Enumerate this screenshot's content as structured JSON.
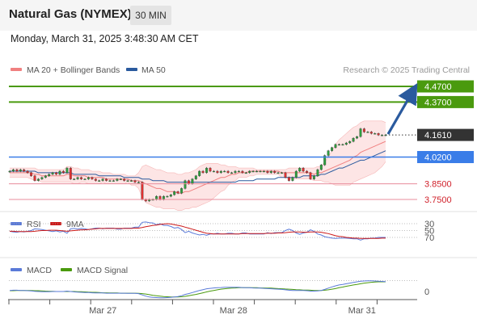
{
  "header": {
    "title": "Natural Gas (NYMEX)",
    "timeframe": "30 MIN",
    "datetime": "Monday, March 31, 2025 3:48:30 AM CET"
  },
  "colors": {
    "bollinger": "#f08080",
    "bollinger_fill": "#fde0e0",
    "ma50": "#2a5a9e",
    "resistance": "#4a9a0e",
    "pivot": "#3a7de8",
    "support": "#e88c9c",
    "price_label": "#333333",
    "arrow": "#2a5a9e",
    "rsi": "#5a7ad8",
    "rsi_ma": "#cc1a1a",
    "macd": "#5a7ad8",
    "macd_signal": "#4a9a0e"
  },
  "chart_data": [
    {
      "type": "line",
      "panel": "price",
      "legend": [
        {
          "name": "MA 20 + Bollinger Bands",
          "color": "#f08080"
        },
        {
          "name": "MA 50",
          "color": "#2a5a9e"
        }
      ],
      "watermark": "Research © 2025 Trading Central",
      "x_ticks": [
        {
          "label": "Mar 27",
          "pos": 0.23
        },
        {
          "label": "Mar 28",
          "pos": 0.55
        },
        {
          "label": "Mar 31",
          "pos": 0.865
        }
      ],
      "ylim": [
        3.7,
        4.5
      ],
      "levels": [
        {
          "label": "4.4700",
          "value": 4.47,
          "kind": "resistance"
        },
        {
          "label": "4.3700",
          "value": 4.37,
          "kind": "resistance"
        },
        {
          "label": "4.0200",
          "value": 4.02,
          "kind": "pivot"
        },
        {
          "label": "3.8500",
          "value": 3.85,
          "kind": "support"
        },
        {
          "label": "3.7500",
          "value": 3.75,
          "kind": "support"
        }
      ],
      "last_price": {
        "label": "4.1610",
        "value": 4.161
      },
      "close": [
        3.93,
        3.94,
        3.93,
        3.94,
        3.93,
        3.92,
        3.9,
        3.87,
        3.88,
        3.89,
        3.9,
        3.91,
        3.92,
        3.91,
        3.93,
        3.92,
        3.95,
        3.88,
        3.88,
        3.89,
        3.88,
        3.88,
        3.89,
        3.88,
        3.87,
        3.87,
        3.88,
        3.87,
        3.87,
        3.87,
        3.88,
        3.88,
        3.87,
        3.87,
        3.87,
        3.86,
        3.86,
        3.75,
        3.74,
        3.75,
        3.75,
        3.77,
        3.75,
        3.77,
        3.77,
        3.78,
        3.8,
        3.79,
        3.82,
        3.87,
        3.85,
        3.88,
        3.9,
        3.93,
        3.92,
        3.95,
        3.93,
        3.93,
        3.92,
        3.93,
        3.93,
        3.92,
        3.92,
        3.93,
        3.93,
        3.92,
        3.92,
        3.93,
        3.93,
        3.93,
        3.93,
        3.93,
        3.92,
        3.93,
        3.92,
        3.92,
        3.92,
        3.89,
        3.87,
        3.89,
        3.93,
        3.95,
        3.93,
        3.92,
        3.88,
        3.9,
        3.94,
        3.97,
        4.03,
        4.06,
        4.08,
        4.1,
        4.1,
        4.1,
        4.11,
        4.12,
        4.14,
        4.15,
        4.2,
        4.18,
        4.18,
        4.17,
        4.17,
        4.16,
        4.16,
        4.161
      ],
      "ma20": [
        3.92,
        3.92,
        3.92,
        3.92,
        3.92,
        3.92,
        3.92,
        3.91,
        3.91,
        3.9,
        3.9,
        3.9,
        3.9,
        3.9,
        3.9,
        3.9,
        3.91,
        3.91,
        3.9,
        3.9,
        3.9,
        3.9,
        3.89,
        3.89,
        3.89,
        3.89,
        3.89,
        3.88,
        3.88,
        3.88,
        3.88,
        3.88,
        3.88,
        3.88,
        3.87,
        3.87,
        3.87,
        3.86,
        3.85,
        3.84,
        3.83,
        3.82,
        3.82,
        3.81,
        3.8,
        3.8,
        3.8,
        3.79,
        3.79,
        3.8,
        3.8,
        3.81,
        3.82,
        3.83,
        3.84,
        3.85,
        3.86,
        3.87,
        3.88,
        3.89,
        3.89,
        3.9,
        3.91,
        3.91,
        3.92,
        3.92,
        3.92,
        3.93,
        3.93,
        3.93,
        3.93,
        3.93,
        3.93,
        3.93,
        3.93,
        3.93,
        3.92,
        3.92,
        3.92,
        3.92,
        3.92,
        3.92,
        3.92,
        3.92,
        3.92,
        3.91,
        3.92,
        3.92,
        3.93,
        3.94,
        3.95,
        3.96,
        3.97,
        3.98,
        3.99,
        4.0,
        4.02,
        4.03,
        4.05,
        4.06,
        4.07,
        4.08,
        4.09,
        4.1,
        4.11,
        4.12
      ],
      "bb_upper": [
        3.95,
        3.95,
        3.95,
        3.95,
        3.95,
        3.95,
        3.95,
        3.95,
        3.94,
        3.94,
        3.94,
        3.94,
        3.94,
        3.94,
        3.94,
        3.94,
        3.96,
        3.96,
        3.95,
        3.95,
        3.94,
        3.94,
        3.94,
        3.93,
        3.93,
        3.93,
        3.92,
        3.92,
        3.92,
        3.91,
        3.91,
        3.91,
        3.91,
        3.9,
        3.9,
        3.9,
        3.92,
        3.96,
        3.97,
        3.96,
        3.95,
        3.94,
        3.94,
        3.93,
        3.92,
        3.92,
        3.92,
        3.91,
        3.91,
        3.92,
        3.92,
        3.93,
        3.94,
        3.96,
        3.97,
        3.98,
        3.98,
        3.98,
        3.98,
        3.97,
        3.97,
        3.96,
        3.96,
        3.96,
        3.95,
        3.95,
        3.95,
        3.95,
        3.95,
        3.94,
        3.94,
        3.94,
        3.94,
        3.94,
        3.94,
        3.94,
        3.94,
        3.94,
        3.95,
        3.95,
        3.95,
        3.95,
        3.95,
        3.95,
        3.95,
        3.95,
        3.96,
        3.96,
        3.99,
        4.02,
        4.06,
        4.1,
        4.13,
        4.15,
        4.17,
        4.19,
        4.21,
        4.22,
        4.24,
        4.25,
        4.25,
        4.25,
        4.25,
        4.25,
        4.25,
        4.24
      ],
      "bb_lower": [
        3.89,
        3.89,
        3.89,
        3.89,
        3.89,
        3.89,
        3.88,
        3.87,
        3.87,
        3.86,
        3.86,
        3.86,
        3.86,
        3.86,
        3.86,
        3.86,
        3.86,
        3.86,
        3.85,
        3.85,
        3.86,
        3.86,
        3.85,
        3.85,
        3.85,
        3.85,
        3.86,
        3.85,
        3.85,
        3.85,
        3.85,
        3.85,
        3.85,
        3.86,
        3.84,
        3.84,
        3.82,
        3.76,
        3.73,
        3.72,
        3.71,
        3.7,
        3.7,
        3.69,
        3.69,
        3.69,
        3.69,
        3.68,
        3.68,
        3.69,
        3.69,
        3.7,
        3.7,
        3.71,
        3.72,
        3.73,
        3.74,
        3.76,
        3.78,
        3.8,
        3.81,
        3.84,
        3.86,
        3.87,
        3.89,
        3.89,
        3.89,
        3.9,
        3.9,
        3.91,
        3.91,
        3.91,
        3.91,
        3.91,
        3.91,
        3.91,
        3.89,
        3.89,
        3.88,
        3.88,
        3.88,
        3.88,
        3.88,
        3.88,
        3.88,
        3.87,
        3.87,
        3.87,
        3.86,
        3.86,
        3.85,
        3.84,
        3.84,
        3.84,
        3.84,
        3.84,
        3.86,
        3.87,
        3.88,
        3.89,
        3.9,
        3.91,
        3.92,
        3.94,
        3.96,
        3.99
      ],
      "ma50": [
        3.93,
        3.93,
        3.93,
        3.93,
        3.93,
        3.93,
        3.93,
        3.93,
        3.92,
        3.92,
        3.92,
        3.92,
        3.92,
        3.92,
        3.92,
        3.92,
        3.92,
        3.92,
        3.91,
        3.91,
        3.91,
        3.91,
        3.91,
        3.91,
        3.91,
        3.9,
        3.9,
        3.9,
        3.9,
        3.9,
        3.9,
        3.9,
        3.89,
        3.89,
        3.89,
        3.89,
        3.89,
        3.88,
        3.88,
        3.88,
        3.87,
        3.87,
        3.87,
        3.87,
        3.86,
        3.86,
        3.86,
        3.86,
        3.86,
        3.86,
        3.86,
        3.86,
        3.86,
        3.86,
        3.86,
        3.86,
        3.86,
        3.86,
        3.86,
        3.86,
        3.86,
        3.86,
        3.86,
        3.86,
        3.87,
        3.87,
        3.87,
        3.87,
        3.87,
        3.88,
        3.88,
        3.88,
        3.88,
        3.88,
        3.88,
        3.89,
        3.89,
        3.89,
        3.89,
        3.89,
        3.89,
        3.89,
        3.9,
        3.9,
        3.9,
        3.9,
        3.9,
        3.91,
        3.91,
        3.92,
        3.93,
        3.94,
        3.95,
        3.95,
        3.96,
        3.97,
        3.98,
        3.99,
        4.0,
        4.0,
        4.01,
        4.02,
        4.03,
        4.04,
        4.05,
        4.06
      ]
    },
    {
      "type": "line",
      "panel": "rsi",
      "legend": [
        {
          "name": "RSI",
          "color": "#5a7ad8"
        },
        {
          "name": "9MA",
          "color": "#cc1a1a"
        }
      ],
      "ticks": [
        "70",
        "50",
        "30"
      ],
      "rsi": [
        52,
        54,
        55,
        53,
        54,
        52,
        50,
        45,
        46,
        47,
        49,
        51,
        53,
        51,
        54,
        52,
        58,
        45,
        44,
        46,
        44,
        45,
        47,
        45,
        43,
        43,
        45,
        43,
        43,
        43,
        46,
        46,
        43,
        43,
        43,
        40,
        40,
        26,
        25,
        27,
        28,
        33,
        30,
        35,
        35,
        38,
        43,
        41,
        47,
        56,
        52,
        57,
        60,
        63,
        61,
        64,
        60,
        60,
        58,
        60,
        60,
        58,
        58,
        60,
        60,
        57,
        57,
        60,
        60,
        60,
        60,
        60,
        56,
        59,
        56,
        56,
        56,
        50,
        46,
        50,
        57,
        61,
        57,
        55,
        48,
        52,
        60,
        63,
        68,
        70,
        72,
        73,
        72,
        72,
        72,
        73,
        74,
        74,
        78,
        74,
        74,
        72,
        72,
        70,
        70,
        70
      ],
      "ma9": [
        52,
        52,
        53,
        53,
        53,
        53,
        53,
        52,
        51,
        50,
        50,
        49,
        49,
        49,
        50,
        51,
        52,
        51,
        50,
        49,
        48,
        48,
        47,
        46,
        45,
        44,
        44,
        44,
        44,
        44,
        44,
        44,
        44,
        44,
        44,
        43,
        43,
        41,
        39,
        37,
        35,
        34,
        32,
        31,
        30,
        31,
        33,
        35,
        37,
        40,
        43,
        46,
        49,
        52,
        55,
        58,
        59,
        60,
        60,
        60,
        60,
        60,
        60,
        60,
        60,
        59,
        59,
        59,
        59,
        59,
        59,
        59,
        58,
        58,
        58,
        57,
        57,
        56,
        55,
        54,
        54,
        54,
        55,
        55,
        54,
        54,
        54,
        55,
        57,
        59,
        62,
        65,
        67,
        68,
        70,
        71,
        72,
        72,
        73,
        73,
        73,
        73,
        73,
        73,
        72,
        72
      ]
    },
    {
      "type": "line",
      "panel": "macd",
      "legend": [
        {
          "name": "MACD",
          "color": "#5a7ad8"
        },
        {
          "name": "MACD Signal",
          "color": "#4a9a0e"
        }
      ],
      "ticks": [
        "0"
      ],
      "macd": [
        0.005,
        0.006,
        0.006,
        0.005,
        0.005,
        0.004,
        0.003,
        0.001,
        0.0,
        -0.001,
        -0.001,
        -0.001,
        0.0,
        0.0,
        0.0,
        0.0,
        0.002,
        0.0,
        -0.002,
        -0.003,
        -0.004,
        -0.005,
        -0.005,
        -0.006,
        -0.007,
        -0.007,
        -0.007,
        -0.008,
        -0.008,
        -0.008,
        -0.008,
        -0.008,
        -0.008,
        -0.009,
        -0.009,
        -0.009,
        -0.01,
        -0.016,
        -0.022,
        -0.026,
        -0.028,
        -0.029,
        -0.03,
        -0.03,
        -0.029,
        -0.028,
        -0.026,
        -0.024,
        -0.02,
        -0.014,
        -0.01,
        -0.005,
        0.0,
        0.005,
        0.009,
        0.013,
        0.015,
        0.017,
        0.018,
        0.019,
        0.02,
        0.02,
        0.02,
        0.02,
        0.02,
        0.019,
        0.018,
        0.018,
        0.017,
        0.016,
        0.016,
        0.015,
        0.014,
        0.013,
        0.012,
        0.011,
        0.01,
        0.008,
        0.006,
        0.005,
        0.005,
        0.005,
        0.005,
        0.004,
        0.002,
        0.002,
        0.003,
        0.005,
        0.01,
        0.016,
        0.022,
        0.027,
        0.031,
        0.034,
        0.037,
        0.04,
        0.043,
        0.046,
        0.049,
        0.05,
        0.051,
        0.051,
        0.05,
        0.049,
        0.048,
        0.047
      ],
      "signal": [
        0.004,
        0.004,
        0.005,
        0.005,
        0.005,
        0.005,
        0.005,
        0.004,
        0.004,
        0.003,
        0.002,
        0.001,
        0.001,
        0.0,
        0.0,
        0.0,
        0.0,
        0.0,
        0.0,
        -0.001,
        -0.001,
        -0.002,
        -0.003,
        -0.004,
        -0.004,
        -0.005,
        -0.006,
        -0.006,
        -0.007,
        -0.007,
        -0.007,
        -0.008,
        -0.008,
        -0.008,
        -0.008,
        -0.008,
        -0.009,
        -0.01,
        -0.012,
        -0.015,
        -0.018,
        -0.02,
        -0.022,
        -0.024,
        -0.025,
        -0.026,
        -0.026,
        -0.026,
        -0.025,
        -0.023,
        -0.02,
        -0.017,
        -0.014,
        -0.01,
        -0.006,
        -0.002,
        0.002,
        0.005,
        0.008,
        0.011,
        0.013,
        0.015,
        0.016,
        0.017,
        0.018,
        0.018,
        0.018,
        0.018,
        0.018,
        0.018,
        0.017,
        0.017,
        0.016,
        0.016,
        0.015,
        0.014,
        0.013,
        0.012,
        0.011,
        0.01,
        0.009,
        0.008,
        0.007,
        0.007,
        0.006,
        0.005,
        0.005,
        0.005,
        0.006,
        0.008,
        0.011,
        0.014,
        0.018,
        0.021,
        0.025,
        0.028,
        0.031,
        0.034,
        0.037,
        0.04,
        0.042,
        0.044,
        0.045,
        0.046,
        0.046,
        0.046
      ]
    }
  ]
}
